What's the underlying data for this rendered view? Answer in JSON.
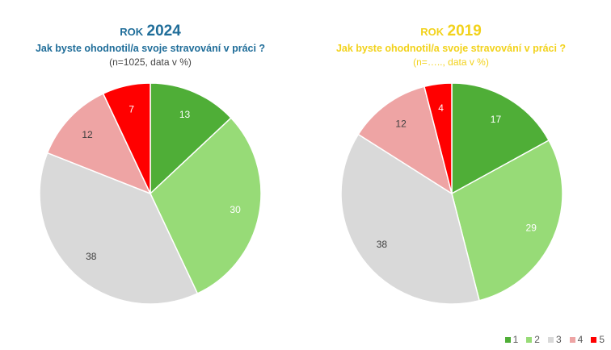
{
  "chart_data": [
    {
      "type": "pie",
      "year_prefix": "ROK",
      "year": "2024",
      "title": "Jak byste ohodnotil/a svoje stravování v práci ?",
      "subtitle": "(n=1025, data v %)",
      "categories": [
        "1",
        "2",
        "3",
        "4",
        "5"
      ],
      "values": [
        13,
        30,
        38,
        12,
        7
      ],
      "colors": [
        "#4fae37",
        "#97db77",
        "#d9d9d9",
        "#eea4a4",
        "#ff0000"
      ],
      "start": "12 o'clock, clockwise"
    },
    {
      "type": "pie",
      "year_prefix": "ROK",
      "year": "2019",
      "title": "Jak byste ohodnotil/a svoje stravování v práci ?",
      "subtitle": "(n=….., data v %)",
      "categories": [
        "1",
        "2",
        "3",
        "4",
        "5"
      ],
      "values": [
        17,
        29,
        38,
        12,
        4
      ],
      "colors": [
        "#4fae37",
        "#97db77",
        "#d9d9d9",
        "#eea4a4",
        "#ff0000"
      ],
      "start": "12 o'clock, clockwise"
    }
  ],
  "legend": {
    "placement": "bottom-right",
    "items": [
      {
        "label": "1",
        "color": "#4fae37"
      },
      {
        "label": "2",
        "color": "#97db77"
      },
      {
        "label": "3",
        "color": "#d9d9d9"
      },
      {
        "label": "4",
        "color": "#eea4a4"
      },
      {
        "label": "5",
        "color": "#ff0000"
      }
    ]
  }
}
